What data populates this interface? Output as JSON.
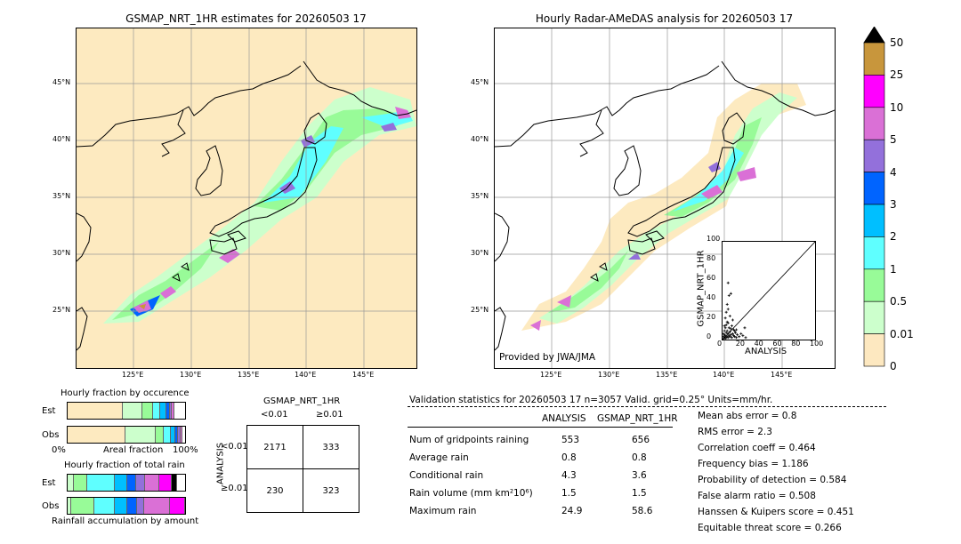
{
  "left_map": {
    "title": "GSMAP_NRT_1HR estimates for 20260503 17",
    "lat_labels": [
      "45°N",
      "40°N",
      "35°N",
      "30°N",
      "25°N"
    ],
    "lon_labels": [
      "125°E",
      "130°E",
      "135°E",
      "140°E",
      "145°E"
    ]
  },
  "right_map": {
    "title": "Hourly Radar-AMeDAS analysis for 20260503 17",
    "lat_labels": [
      "45°N",
      "40°N",
      "35°N",
      "30°N",
      "25°N"
    ],
    "lon_labels": [
      "125°E",
      "130°E",
      "135°E",
      "140°E",
      "145°E"
    ],
    "credit": "Provided by JWA/JMA"
  },
  "colorbar": {
    "labels": [
      "50",
      "25",
      "10",
      "5",
      "4",
      "3",
      "2",
      "1",
      "0.5",
      "0.01",
      "0"
    ],
    "colors": [
      "#000000",
      "#c8963c",
      "#ff00ff",
      "#da70d6",
      "#9370db",
      "#0064ff",
      "#00bfff",
      "#5fffff",
      "#98fb98",
      "#ccffcc",
      "#fde8c0"
    ]
  },
  "fraction_occurrence": {
    "title": "Hourly fraction by occurence",
    "row_labels": [
      "Est",
      "Obs"
    ],
    "axis_left": "0%",
    "axis_mid": "Areal fraction",
    "axis_right": "100%",
    "est_fractions": [
      0.47,
      0.17,
      0.09,
      0.06,
      0.05,
      0.03,
      0.02,
      0.02
    ],
    "obs_fractions": [
      0.49,
      0.26,
      0.07,
      0.06,
      0.04,
      0.02,
      0.02,
      0.02
    ],
    "colors": [
      "#fdeac0",
      "#ccffcc",
      "#98fb98",
      "#5fffff",
      "#00bfff",
      "#0064ff",
      "#9370db",
      "#da70d6"
    ]
  },
  "fraction_total": {
    "title": "Hourly fraction of total rain",
    "row_labels": [
      "Est",
      "Obs"
    ],
    "footer": "Rainfall accumulation by amount",
    "est_fractions": [
      0.05,
      0.12,
      0.23,
      0.11,
      0.07,
      0.08,
      0.12,
      0.11,
      0.04
    ],
    "est_colors": [
      "#ccffcc",
      "#98fb98",
      "#5fffff",
      "#00bfff",
      "#0064ff",
      "#9370db",
      "#da70d6",
      "#ff00ff",
      "#000000"
    ],
    "obs_fractions": [
      0.03,
      0.2,
      0.17,
      0.11,
      0.08,
      0.06,
      0.22,
      0.13
    ],
    "obs_colors": [
      "#ccffcc",
      "#98fb98",
      "#5fffff",
      "#00bfff",
      "#0064ff",
      "#9370db",
      "#da70d6",
      "#ff00ff"
    ]
  },
  "contingency": {
    "header": "GSMAP_NRT_1HR",
    "col_labels": [
      "<0.01",
      "≥0.01"
    ],
    "row_axis": "ANALYSIS",
    "row_labels": [
      "<0.01",
      "≥0.01"
    ],
    "cells": [
      [
        "2171",
        "333"
      ],
      [
        "230",
        "323"
      ]
    ]
  },
  "validation": {
    "header": "Validation statistics for 20260503 17  n=3057 Valid. grid=0.25° Units=mm/hr.",
    "col_analysis": "ANALYSIS",
    "col_gsmap": "GSMAP_NRT_1HR",
    "rows": [
      {
        "label": "Num of gridpoints raining",
        "analysis": "553",
        "gsmap": "656"
      },
      {
        "label": "Average rain",
        "analysis": "0.8",
        "gsmap": "0.8"
      },
      {
        "label": "Conditional rain",
        "analysis": "4.3",
        "gsmap": "3.6"
      },
      {
        "label": "Rain volume (mm km²10⁶)",
        "analysis": "1.5",
        "gsmap": "1.5"
      },
      {
        "label": "Maximum rain",
        "analysis": "24.9",
        "gsmap": "58.6"
      }
    ],
    "scores": [
      "Mean abs error =    0.8",
      "RMS error =    2.3",
      "Correlation coeff =  0.464",
      "Frequency bias =  1.186",
      "Probability of detection =  0.584",
      "False alarm ratio =  0.508",
      "Hanssen & Kuipers score =  0.451",
      "Equitable threat score =  0.266"
    ]
  },
  "chart_data": {
    "type": "scatter",
    "xlabel": "ANALYSIS",
    "ylabel": "GSMAP_NRT_1HR",
    "xlim": [
      0,
      100
    ],
    "ylim": [
      0,
      100
    ],
    "xticks": [
      "0",
      "20",
      "40",
      "60",
      "80",
      "100"
    ],
    "yticks": [
      "0",
      "20",
      "40",
      "60",
      "80",
      "100"
    ],
    "points": [
      [
        1,
        1
      ],
      [
        1,
        3
      ],
      [
        2,
        2
      ],
      [
        2,
        5
      ],
      [
        3,
        1
      ],
      [
        3,
        4
      ],
      [
        4,
        2
      ],
      [
        4,
        7
      ],
      [
        5,
        3
      ],
      [
        5,
        9
      ],
      [
        6,
        2
      ],
      [
        6,
        6
      ],
      [
        7,
        4
      ],
      [
        7,
        12
      ],
      [
        8,
        3
      ],
      [
        8,
        8
      ],
      [
        9,
        5
      ],
      [
        10,
        2
      ],
      [
        10,
        14
      ],
      [
        11,
        6
      ],
      [
        12,
        4
      ],
      [
        12,
        10
      ],
      [
        13,
        3
      ],
      [
        14,
        7
      ],
      [
        15,
        2
      ],
      [
        16,
        5
      ],
      [
        18,
        3
      ],
      [
        20,
        6
      ],
      [
        22,
        4
      ],
      [
        25,
        2
      ],
      [
        2,
        9
      ],
      [
        3,
        12
      ],
      [
        4,
        15
      ],
      [
        5,
        18
      ],
      [
        3,
        22
      ],
      [
        4,
        28
      ],
      [
        6,
        31
      ],
      [
        5,
        36
      ],
      [
        7,
        45
      ],
      [
        9,
        47
      ],
      [
        6,
        58
      ],
      [
        8,
        24
      ],
      [
        11,
        20
      ],
      [
        24,
        12
      ],
      [
        15,
        10
      ],
      [
        1,
        6
      ],
      [
        2,
        14
      ],
      [
        9,
        11
      ],
      [
        6,
        17
      ],
      [
        13,
        9
      ]
    ]
  }
}
